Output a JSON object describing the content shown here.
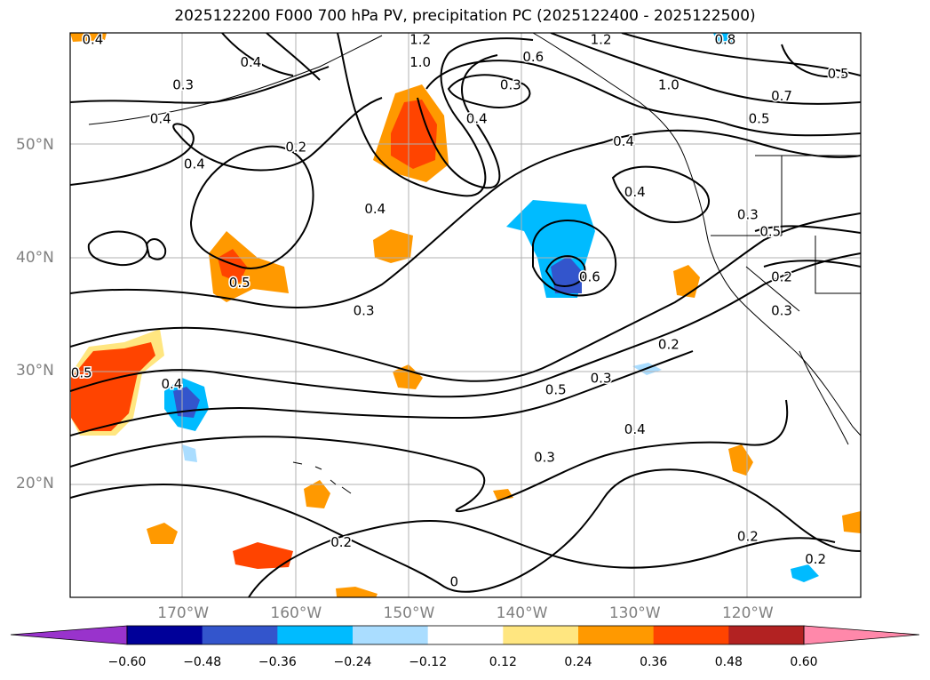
{
  "title": "2025122200 F000 700 hPa PV, precipitation PC (2025122400 - 2025122500)",
  "map": {
    "lat_labels": [
      {
        "text": "50°N",
        "lat": 50
      },
      {
        "text": "40°N",
        "lat": 40
      },
      {
        "text": "30°N",
        "lat": 30
      },
      {
        "text": "20°N",
        "lat": 20
      }
    ],
    "lon_labels": [
      {
        "text": "170°W",
        "lon": -170
      },
      {
        "text": "160°W",
        "lon": -160
      },
      {
        "text": "150°W",
        "lon": -150
      },
      {
        "text": "140°W",
        "lon": -140
      },
      {
        "text": "130°W",
        "lon": -130
      },
      {
        "text": "120°W",
        "lon": -120
      }
    ],
    "contour_labels": [
      {
        "text": "0.4",
        "lon": -178,
        "lat": 59
      },
      {
        "text": "0.3",
        "lon": -170,
        "lat": 55
      },
      {
        "text": "0.4",
        "lon": -172,
        "lat": 52
      },
      {
        "text": "0.4",
        "lon": -169,
        "lat": 48
      },
      {
        "text": "0.2",
        "lon": -160,
        "lat": 49.5
      },
      {
        "text": "0.4",
        "lon": -164,
        "lat": 57
      },
      {
        "text": "1.2",
        "lon": -149,
        "lat": 59
      },
      {
        "text": "1.0",
        "lon": -149,
        "lat": 57
      },
      {
        "text": "0.3",
        "lon": -141,
        "lat": 55
      },
      {
        "text": "0.4",
        "lon": -144,
        "lat": 52
      },
      {
        "text": "0.6",
        "lon": -139,
        "lat": 57.5
      },
      {
        "text": "1.2",
        "lon": -133,
        "lat": 59
      },
      {
        "text": "1.0",
        "lon": -127,
        "lat": 55
      },
      {
        "text": "0.8",
        "lon": -122,
        "lat": 59
      },
      {
        "text": "0.7",
        "lon": -117,
        "lat": 54
      },
      {
        "text": "0.5",
        "lon": -119,
        "lat": 52
      },
      {
        "text": "0.5",
        "lon": -112,
        "lat": 56
      },
      {
        "text": "0.4",
        "lon": -131,
        "lat": 50
      },
      {
        "text": "0.4",
        "lon": -130,
        "lat": 45.5
      },
      {
        "text": "0.3",
        "lon": -120,
        "lat": 43.5
      },
      {
        "text": "0.5",
        "lon": -118,
        "lat": 42
      },
      {
        "text": "0.2",
        "lon": -117,
        "lat": 38
      },
      {
        "text": "0.3",
        "lon": -117,
        "lat": 35
      },
      {
        "text": "0.4",
        "lon": -153,
        "lat": 44
      },
      {
        "text": "0.5",
        "lon": -165,
        "lat": 37.5
      },
      {
        "text": "0.3",
        "lon": -154,
        "lat": 35
      },
      {
        "text": "0.6",
        "lon": -134,
        "lat": 38
      },
      {
        "text": "0.2",
        "lon": -127,
        "lat": 32
      },
      {
        "text": "0.3",
        "lon": -133,
        "lat": 29
      },
      {
        "text": "0.5",
        "lon": -137,
        "lat": 28
      },
      {
        "text": "0.5",
        "lon": -179,
        "lat": 29.5
      },
      {
        "text": "0.4",
        "lon": -171,
        "lat": 28.5
      },
      {
        "text": "0.4",
        "lon": -130,
        "lat": 24.5
      },
      {
        "text": "0.3",
        "lon": -138,
        "lat": 22
      },
      {
        "text": "0.2",
        "lon": -156,
        "lat": 14.5
      },
      {
        "text": "0.2",
        "lon": -120,
        "lat": 15
      },
      {
        "text": "0.2",
        "lon": -114,
        "lat": 13
      },
      {
        "text": "0",
        "lon": -146,
        "lat": 11
      }
    ]
  },
  "colorbar": {
    "labels": [
      "−0.60",
      "−0.48",
      "−0.36",
      "−0.24",
      "−0.12",
      "0.12",
      "0.24",
      "0.36",
      "0.48",
      "0.60"
    ],
    "colors": [
      "#9933cc",
      "#000099",
      "#3355cc",
      "#00bbff",
      "#aaddff",
      "#ffffff",
      "#ffe680",
      "#ff9900",
      "#ff4400",
      "#b22222",
      "#ff88aa"
    ]
  }
}
